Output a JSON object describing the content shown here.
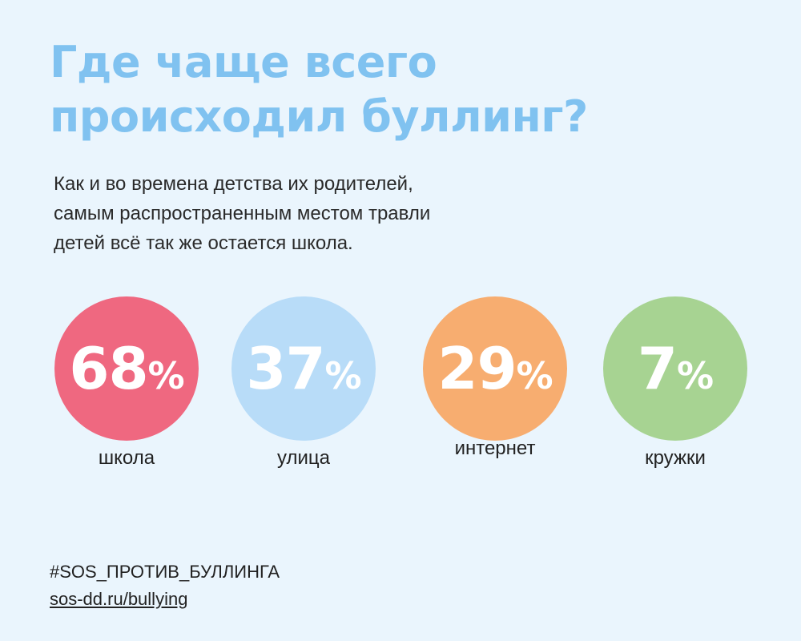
{
  "title_lines": [
    "Где чаще всего",
    "происходил буллинг?"
  ],
  "subtitle_lines": [
    "Как и во времена детства их родителей,",
    "самым распространенным местом травли",
    "детей всё так же остается школа."
  ],
  "chart_data": {
    "type": "bubble-stats",
    "unit": "%",
    "categories": [
      "школа",
      "улица",
      "интернет",
      "кружки"
    ],
    "values": [
      68,
      37,
      29,
      7
    ],
    "colors": [
      "#ef6880",
      "#b8dcf8",
      "#f7ad70",
      "#a7d392"
    ]
  },
  "footer": {
    "hashtag": "#SOS_ПРОТИВ_БУЛЛИНГА",
    "link": "sos-dd.ru/bullying"
  }
}
